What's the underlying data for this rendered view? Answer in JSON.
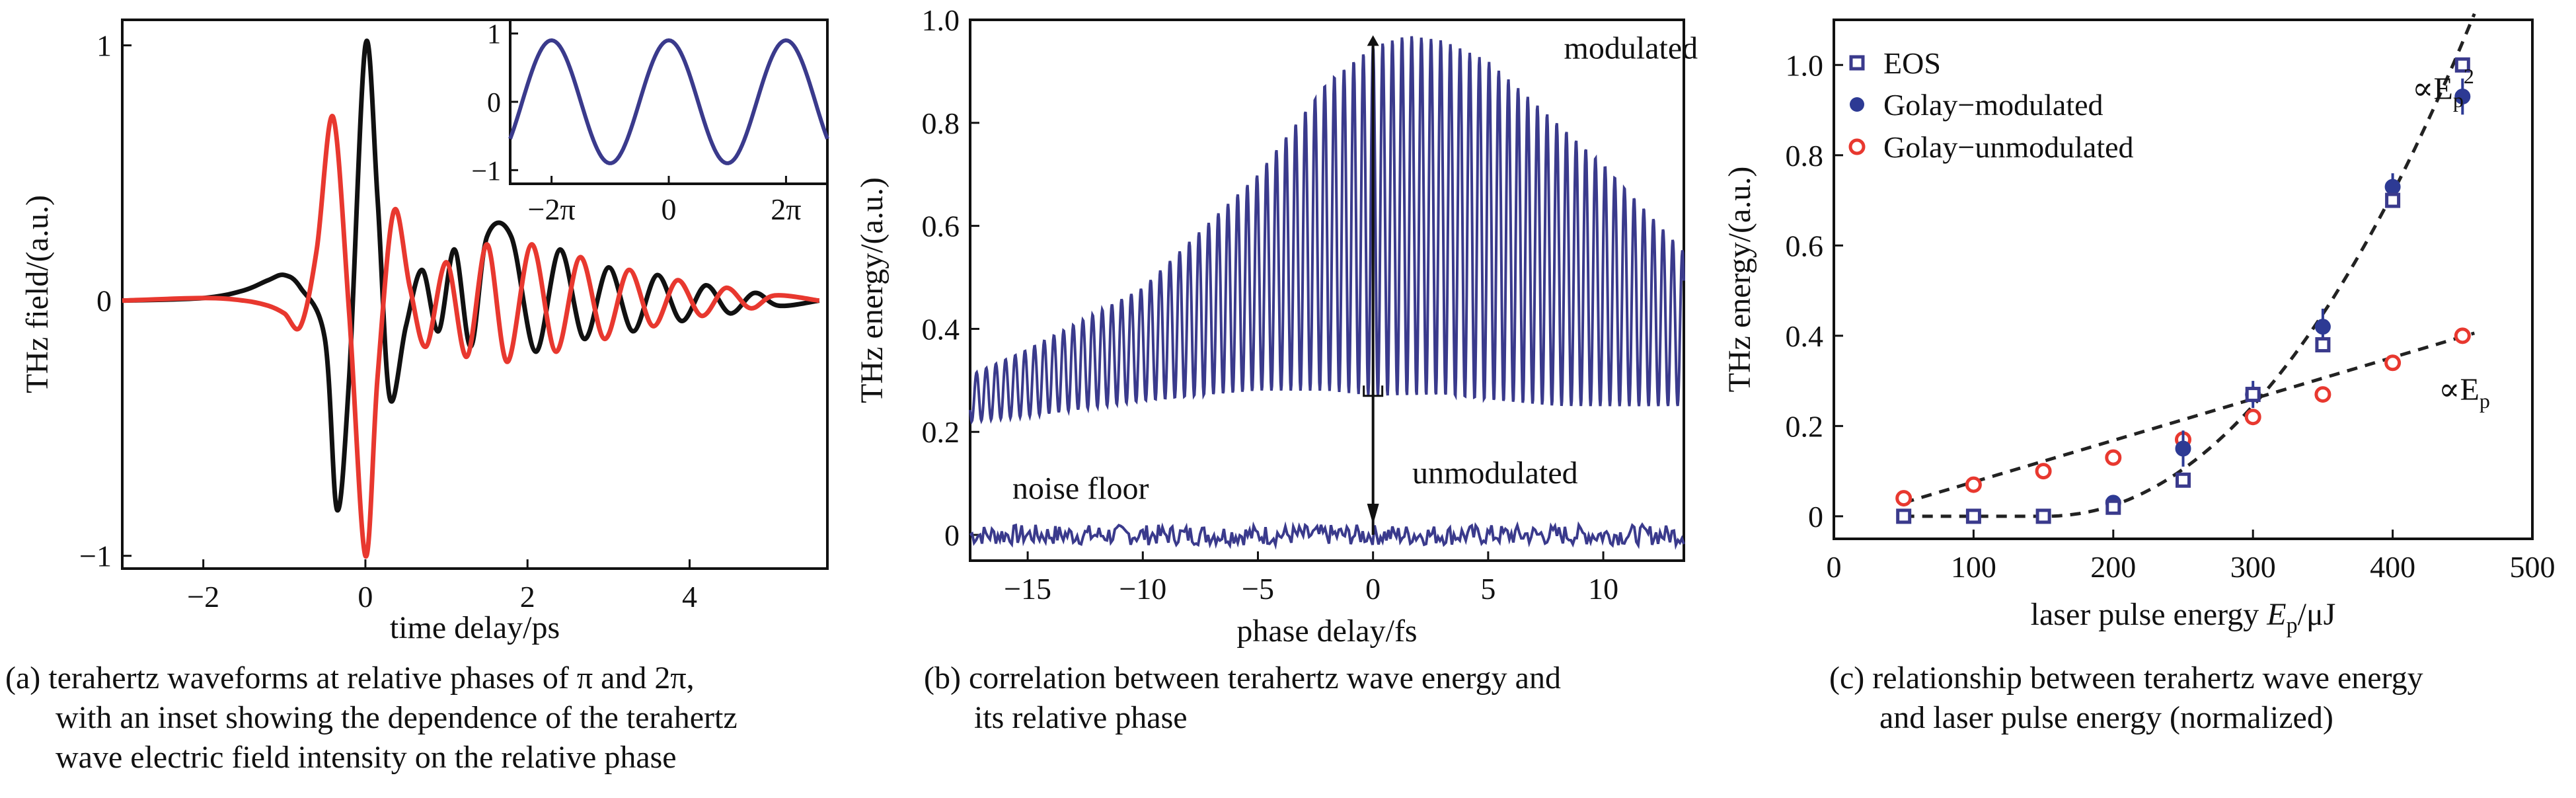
{
  "panels": [
    {
      "id": "a",
      "caption": [
        "(a) terahertz waveforms at relative phases of π and 2π,",
        "with an inset showing the dependence of the terahertz",
        "wave electric field intensity on the relative phase"
      ],
      "xlabel": "time delay/ps",
      "ylabel": "THz field/(a.u.)",
      "xticks": [
        {
          "v": -2,
          "t": "−2"
        },
        {
          "v": 0,
          "t": "0"
        },
        {
          "v": 2,
          "t": "2"
        },
        {
          "v": 4,
          "t": "4"
        }
      ],
      "yticks": [
        {
          "v": 1,
          "t": "1"
        },
        {
          "v": 0,
          "t": "0"
        },
        {
          "v": -1,
          "t": "−1"
        }
      ],
      "inset_xticks": [
        {
          "v": -6.2832,
          "t": "−2π"
        },
        {
          "v": 0,
          "t": "0"
        },
        {
          "v": 6.2832,
          "t": "2π"
        }
      ],
      "inset_yticks": [
        {
          "v": 1,
          "t": "1"
        },
        {
          "v": 0,
          "t": "0"
        },
        {
          "v": -1,
          "t": "−1"
        }
      ]
    },
    {
      "id": "b",
      "caption": [
        "(b) correlation between terahertz wave energy and",
        "its relative phase"
      ],
      "xlabel": "phase delay/fs",
      "ylabel": "THz energy/(a.u.)",
      "xticks": [
        {
          "v": -15,
          "t": "−15"
        },
        {
          "v": -10,
          "t": "−10"
        },
        {
          "v": -5,
          "t": "−5"
        },
        {
          "v": 0,
          "t": "0"
        },
        {
          "v": 5,
          "t": "5"
        },
        {
          "v": 10,
          "t": "10"
        }
      ],
      "yticks": [
        {
          "v": 1.0,
          "t": "1.0"
        },
        {
          "v": 0.8,
          "t": "0.8"
        },
        {
          "v": 0.6,
          "t": "0.6"
        },
        {
          "v": 0.4,
          "t": "0.4"
        },
        {
          "v": 0.2,
          "t": "0.2"
        },
        {
          "v": 0,
          "t": "0"
        }
      ],
      "annotations": {
        "modulated": "modulated",
        "unmodulated": "unmodulated",
        "noise_floor": "noise floor"
      }
    },
    {
      "id": "c",
      "caption": [
        "(c) relationship between terahertz wave energy",
        "and laser pulse energy (normalized)"
      ],
      "xlabel_main": "laser pulse energy ",
      "xlabel_var": "E",
      "xlabel_sub": "p",
      "xlabel_unit": "/μJ",
      "ylabel": "THz energy/(a.u.)",
      "xticks": [
        {
          "v": 0,
          "t": "0"
        },
        {
          "v": 100,
          "t": "100"
        },
        {
          "v": 200,
          "t": "200"
        },
        {
          "v": 300,
          "t": "300"
        },
        {
          "v": 400,
          "t": "400"
        },
        {
          "v": 500,
          "t": "500"
        }
      ],
      "yticks": [
        {
          "v": 1.0,
          "t": "1.0"
        },
        {
          "v": 0.8,
          "t": "0.8"
        },
        {
          "v": 0.6,
          "t": "0.6"
        },
        {
          "v": 0.4,
          "t": "0.4"
        },
        {
          "v": 0.2,
          "t": "0.2"
        },
        {
          "v": 0,
          "t": "0"
        }
      ],
      "legend": [
        "EOS",
        "Golay−modulated",
        "Golay−unmodulated"
      ],
      "fit_labels": {
        "quadratic_prefix": "∝E",
        "quadratic_sub": "p",
        "quadratic_sup": "2",
        "linear_prefix": "∝E",
        "linear_sub": "p"
      }
    }
  ],
  "colors": {
    "black": "#111111",
    "red": "#e8382f",
    "navy": "#3a3a8c",
    "blue_dot": "#2d3a94"
  },
  "chart_data": [
    {
      "panel": "a",
      "type": "line",
      "xlim": [
        -3,
        5.7
      ],
      "ylim": [
        -1.05,
        1.1
      ],
      "series": [
        {
          "x": [
            -3,
            -2,
            -1.5,
            -1.2,
            -1.0,
            -0.8,
            -0.5,
            -0.35,
            -0.2,
            0,
            0.15,
            0.3,
            0.5,
            0.7,
            0.9,
            1.1,
            1.3,
            1.5,
            1.8,
            2.1,
            2.4,
            2.7,
            3.0,
            3.3,
            3.6,
            3.9,
            4.2,
            4.5,
            4.8,
            5.1,
            5.6
          ],
          "values": [
            0,
            0.01,
            0.04,
            0.08,
            0.1,
            0.05,
            -0.15,
            -0.82,
            -0.3,
            1.0,
            0.4,
            -0.38,
            -0.1,
            0.12,
            -0.12,
            0.2,
            -0.18,
            0.25,
            0.25,
            -0.2,
            0.2,
            -0.15,
            0.13,
            -0.12,
            0.1,
            -0.08,
            0.06,
            -0.05,
            0.03,
            -0.02,
            0
          ]
        },
        {
          "x": [
            -3,
            -2,
            -1.5,
            -1.2,
            -1.0,
            -0.8,
            -0.6,
            -0.4,
            -0.2,
            0,
            0.15,
            0.35,
            0.55,
            0.75,
            1.0,
            1.25,
            1.5,
            1.75,
            2.05,
            2.35,
            2.65,
            2.95,
            3.25,
            3.55,
            3.85,
            4.15,
            4.45,
            4.75,
            5.05,
            5.6
          ],
          "values": [
            0,
            0.01,
            0.0,
            -0.02,
            -0.05,
            -0.1,
            0.2,
            0.72,
            -0.05,
            -1.0,
            -0.3,
            0.35,
            0.05,
            -0.18,
            0.15,
            -0.22,
            0.22,
            -0.24,
            0.22,
            -0.2,
            0.17,
            -0.15,
            0.12,
            -0.1,
            0.08,
            -0.06,
            0.05,
            -0.03,
            0.02,
            0
          ]
        }
      ],
      "inset": {
        "type": "line",
        "xlim": [
          -8.5,
          8.5
        ],
        "ylim": [
          -1.2,
          1.2
        ],
        "x": [
          -8.5,
          -6.2832,
          -3.1416,
          0,
          3.1416,
          6.2832,
          8.5
        ],
        "values": [
          -0.6,
          0.85,
          -0.85,
          0.95,
          -0.85,
          0.85,
          -0.6
        ]
      }
    },
    {
      "panel": "b",
      "type": "line",
      "xlim": [
        -17.5,
        13.5
      ],
      "ylim": [
        -0.05,
        1.0
      ],
      "series": [
        {
          "name": "modulated",
          "x": [
            -17.5,
            -15,
            -10,
            -5,
            -2,
            0,
            1.5,
            3,
            5,
            8,
            10,
            13.5
          ],
          "upper": [
            0.31,
            0.36,
            0.48,
            0.7,
            0.88,
            0.95,
            0.97,
            0.96,
            0.92,
            0.8,
            0.72,
            0.55
          ],
          "lower": [
            0.22,
            0.23,
            0.26,
            0.28,
            0.28,
            0.27,
            0.27,
            0.27,
            0.26,
            0.25,
            0.25,
            0.25
          ]
        },
        {
          "name": "unmodulated",
          "x": [
            -17.5,
            13.5
          ],
          "mean": [
            0,
            0
          ],
          "noise_amplitude": 0.02
        }
      ]
    },
    {
      "panel": "c",
      "type": "scatter",
      "xlim": [
        0,
        500
      ],
      "ylim": [
        -0.05,
        1.1
      ],
      "series": [
        {
          "name": "EOS",
          "x": [
            50,
            100,
            150,
            200,
            250,
            300,
            350,
            400,
            450
          ],
          "values": [
            0.0,
            0.0,
            0.0,
            0.02,
            0.08,
            0.27,
            0.38,
            0.7,
            1.0
          ]
        },
        {
          "name": "Golay−modulated",
          "x": [
            200,
            250,
            300,
            350,
            400,
            450
          ],
          "values": [
            0.03,
            0.15,
            0.27,
            0.42,
            0.73,
            0.93
          ],
          "err": [
            0,
            0.04,
            0.03,
            0.04,
            0.03,
            0.04
          ]
        },
        {
          "name": "Golay−unmodulated",
          "x": [
            50,
            100,
            150,
            200,
            250,
            300,
            350,
            400,
            450
          ],
          "values": [
            0.04,
            0.07,
            0.1,
            0.13,
            0.17,
            0.22,
            0.27,
            0.34,
            0.4
          ]
        }
      ]
    }
  ]
}
